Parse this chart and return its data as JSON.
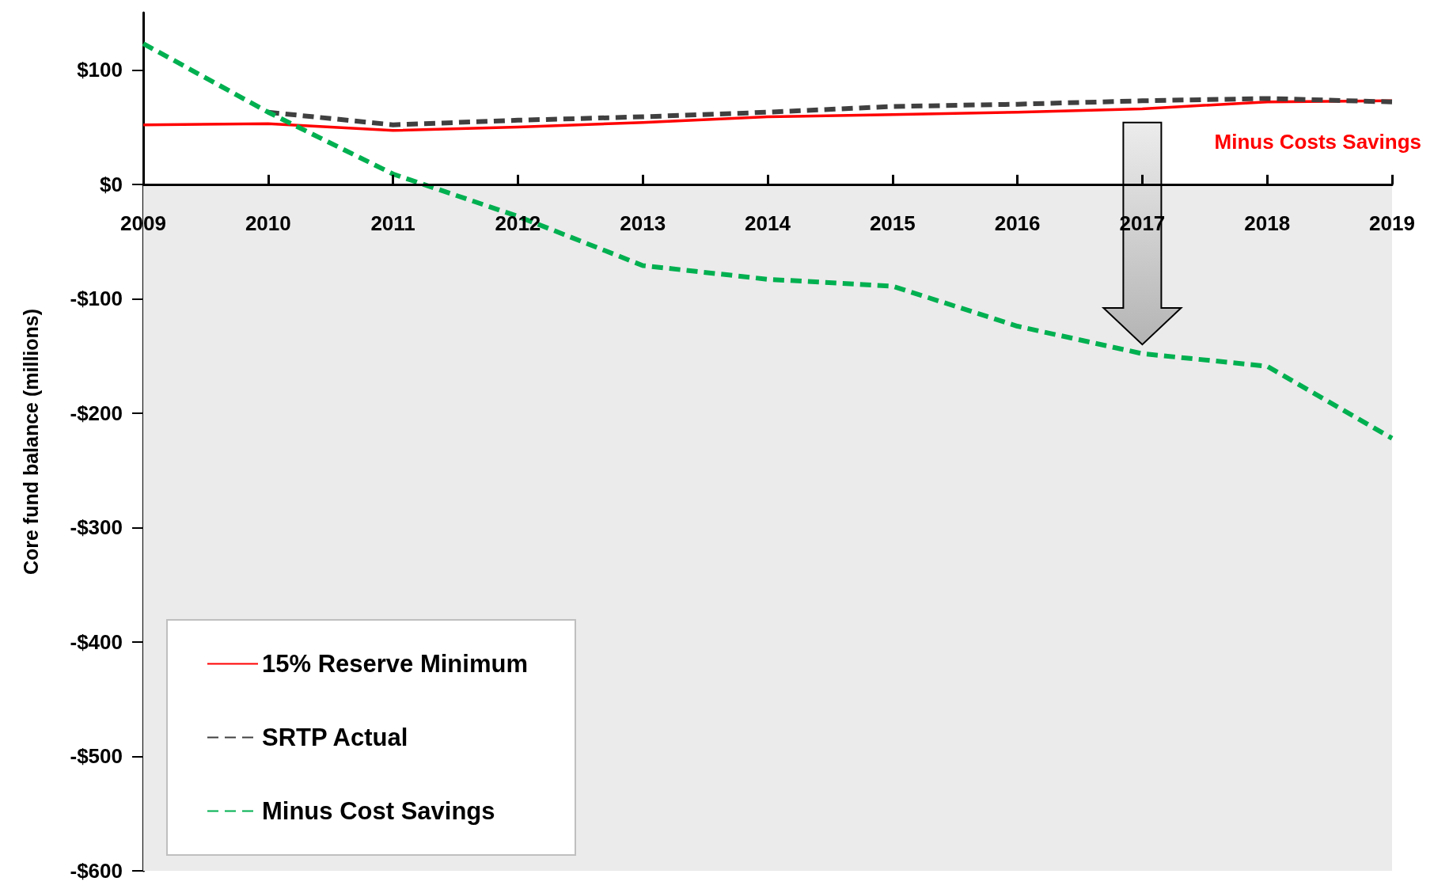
{
  "chart_data": {
    "type": "line",
    "ylabel": "Core fund balance (millions)",
    "categories": [
      "2009",
      "2010",
      "2011",
      "2012",
      "2013",
      "2014",
      "2015",
      "2016",
      "2017",
      "2018",
      "2019"
    ],
    "series": [
      {
        "name": "15% Reserve Minimum",
        "color": "#ff0000",
        "line_style": "solid",
        "values": [
          52,
          53,
          47,
          50,
          54,
          59,
          61,
          63,
          66,
          72,
          73
        ]
      },
      {
        "name": "SRTP Actual",
        "color": "#404040",
        "line_style": "dashed",
        "values": [
          null,
          63,
          52,
          56,
          59,
          63,
          68,
          70,
          73,
          75,
          72
        ]
      },
      {
        "name": "Minus Cost Savings",
        "color": "#00b050",
        "line_style": "dashed",
        "values": [
          123,
          63,
          9,
          -28,
          -71,
          -83,
          -89,
          -124,
          -148,
          -159,
          -222
        ]
      }
    ],
    "ylim": [
      -600,
      150
    ],
    "yticks": [
      {
        "value": -600,
        "label": "-$600"
      },
      {
        "value": -500,
        "label": "-$500"
      },
      {
        "value": -400,
        "label": "-$400"
      },
      {
        "value": -300,
        "label": "-$300"
      },
      {
        "value": -200,
        "label": "-$200"
      },
      {
        "value": -100,
        "label": "-$100"
      },
      {
        "value": 0,
        "label": "$0"
      },
      {
        "value": 100,
        "label": "$100"
      }
    ],
    "bands": [
      {
        "axis": "y",
        "from": -600,
        "to": 0,
        "color": "#ebebeb"
      }
    ],
    "annotations": [
      "Minus Costs Savings"
    ],
    "legend": "bottom left",
    "grid": false,
    "marker": "none"
  }
}
